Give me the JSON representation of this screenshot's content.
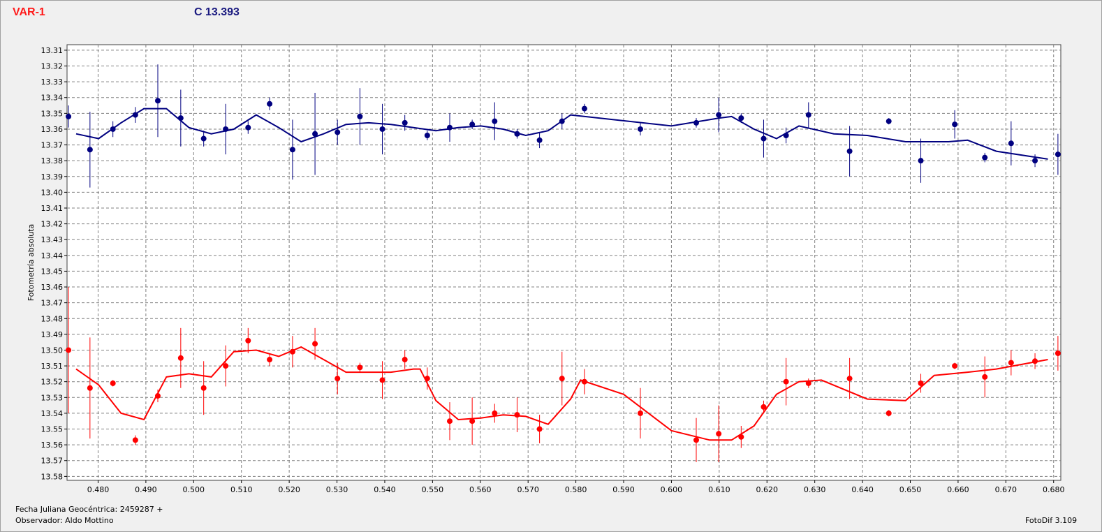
{
  "header": {
    "variable_label": "VAR-1",
    "comparison_label": "C 13.393"
  },
  "footer": {
    "date_label": "Fecha Juliana Geocéntrica: 2459287 +",
    "observer_label": "Observador: Aldo Mottino",
    "software_label": "FotoDif 3.109"
  },
  "colors": {
    "var_series": "#ff0000",
    "comp_series": "#000080",
    "grid": "#808080",
    "plot_background": "#ffffff"
  },
  "chart_data": {
    "type": "scatter",
    "ylabel": "Fotometría absoluta",
    "xlim": [
      0.4735,
      0.6815
    ],
    "ylim": [
      13.31,
      13.58
    ],
    "y_inverted": true,
    "grid": true,
    "x_ticks": [
      "0.480",
      "0.490",
      "0.500",
      "0.510",
      "0.520",
      "0.530",
      "0.540",
      "0.550",
      "0.560",
      "0.570",
      "0.580",
      "0.590",
      "0.600",
      "0.610",
      "0.620",
      "0.630",
      "0.640",
      "0.650",
      "0.660",
      "0.670",
      "0.680"
    ],
    "y_ticks": [
      "13.31",
      "13.32",
      "13.33",
      "13.34",
      "13.35",
      "13.36",
      "13.37",
      "13.38",
      "13.39",
      "13.40",
      "13.41",
      "13.42",
      "13.43",
      "13.44",
      "13.45",
      "13.46",
      "13.47",
      "13.48",
      "13.49",
      "13.50",
      "13.51",
      "13.52",
      "13.53",
      "13.54",
      "13.55",
      "13.56",
      "13.57",
      "13.58"
    ],
    "series": [
      {
        "color": "#000080",
        "points": [
          {
            "x": 0.4738,
            "y": 13.352,
            "err": 0.007
          },
          {
            "x": 0.4783,
            "y": 13.373,
            "err": 0.024
          },
          {
            "x": 0.4831,
            "y": 13.36,
            "err": 0.005
          },
          {
            "x": 0.4878,
            "y": 13.351,
            "err": 0.005
          },
          {
            "x": 0.4925,
            "y": 13.342,
            "err": 0.023
          },
          {
            "x": 0.4973,
            "y": 13.353,
            "err": 0.018
          },
          {
            "x": 0.5021,
            "y": 13.366,
            "err": 0.005
          },
          {
            "x": 0.5067,
            "y": 13.36,
            "err": 0.016
          },
          {
            "x": 0.5114,
            "y": 13.359,
            "err": 0.004
          },
          {
            "x": 0.5159,
            "y": 13.344,
            "err": 0.004
          },
          {
            "x": 0.5207,
            "y": 13.373,
            "err": 0.019
          },
          {
            "x": 0.5254,
            "y": 13.363,
            "err": 0.026
          },
          {
            "x": 0.5301,
            "y": 13.362,
            "err": 0.008
          },
          {
            "x": 0.5348,
            "y": 13.352,
            "err": 0.018
          },
          {
            "x": 0.5395,
            "y": 13.36,
            "err": 0.016
          },
          {
            "x": 0.5442,
            "y": 13.356,
            "err": 0.005
          },
          {
            "x": 0.5489,
            "y": 13.364,
            "err": 0.003
          },
          {
            "x": 0.5536,
            "y": 13.359,
            "err": 0.009
          },
          {
            "x": 0.5583,
            "y": 13.357,
            "err": 0.003
          },
          {
            "x": 0.563,
            "y": 13.355,
            "err": 0.012
          },
          {
            "x": 0.5677,
            "y": 13.363,
            "err": 0.003
          },
          {
            "x": 0.5724,
            "y": 13.367,
            "err": 0.005
          },
          {
            "x": 0.5771,
            "y": 13.355,
            "err": 0.005
          },
          {
            "x": 0.5818,
            "y": 13.347,
            "err": 0.003
          },
          {
            "x": 0.5935,
            "y": 13.36,
            "err": 0.004
          },
          {
            "x": 0.6052,
            "y": 13.356,
            "err": 0.003
          },
          {
            "x": 0.6099,
            "y": 13.351,
            "err": 0.011
          },
          {
            "x": 0.6146,
            "y": 13.353,
            "err": 0.003
          },
          {
            "x": 0.6193,
            "y": 13.366,
            "err": 0.012
          },
          {
            "x": 0.624,
            "y": 13.364,
            "err": 0.005
          },
          {
            "x": 0.6287,
            "y": 13.351,
            "err": 0.008
          },
          {
            "x": 0.6373,
            "y": 13.374,
            "err": 0.016
          },
          {
            "x": 0.6455,
            "y": 13.355,
            "err": 0.002
          },
          {
            "x": 0.6522,
            "y": 13.38,
            "err": 0.014
          },
          {
            "x": 0.6593,
            "y": 13.357,
            "err": 0.009
          },
          {
            "x": 0.6656,
            "y": 13.378,
            "err": 0.003
          },
          {
            "x": 0.6711,
            "y": 13.369,
            "err": 0.014
          },
          {
            "x": 0.6761,
            "y": 13.38,
            "err": 0.004
          },
          {
            "x": 0.6809,
            "y": 13.376,
            "err": 0.013
          }
        ],
        "trend": [
          [
            0.4754,
            13.363
          ],
          [
            0.4801,
            13.366
          ],
          [
            0.4848,
            13.356
          ],
          [
            0.4896,
            13.347
          ],
          [
            0.4943,
            13.347
          ],
          [
            0.499,
            13.359
          ],
          [
            0.5037,
            13.363
          ],
          [
            0.5084,
            13.36
          ],
          [
            0.5131,
            13.351
          ],
          [
            0.5178,
            13.359
          ],
          [
            0.5225,
            13.368
          ],
          [
            0.5272,
            13.363
          ],
          [
            0.5319,
            13.357
          ],
          [
            0.5366,
            13.356
          ],
          [
            0.5413,
            13.357
          ],
          [
            0.546,
            13.359
          ],
          [
            0.5507,
            13.361
          ],
          [
            0.5554,
            13.359
          ],
          [
            0.5601,
            13.358
          ],
          [
            0.5648,
            13.36
          ],
          [
            0.5695,
            13.364
          ],
          [
            0.5742,
            13.361
          ],
          [
            0.5789,
            13.351
          ],
          [
            0.6,
            13.358
          ],
          [
            0.61,
            13.353
          ],
          [
            0.6126,
            13.352
          ],
          [
            0.6173,
            13.36
          ],
          [
            0.622,
            13.366
          ],
          [
            0.6267,
            13.358
          ],
          [
            0.634,
            13.363
          ],
          [
            0.641,
            13.364
          ],
          [
            0.649,
            13.368
          ],
          [
            0.658,
            13.368
          ],
          [
            0.662,
            13.367
          ],
          [
            0.668,
            13.374
          ],
          [
            0.6788,
            13.379
          ]
        ]
      },
      {
        "color": "#ff0000",
        "points": [
          {
            "x": 0.4738,
            "y": 13.5,
            "err": 0.04
          },
          {
            "x": 0.4783,
            "y": 13.524,
            "err": 0.032
          },
          {
            "x": 0.4831,
            "y": 13.521,
            "err": 0.002
          },
          {
            "x": 0.4878,
            "y": 13.557,
            "err": 0.003
          },
          {
            "x": 0.4925,
            "y": 13.529,
            "err": 0.004
          },
          {
            "x": 0.4973,
            "y": 13.505,
            "err": 0.019
          },
          {
            "x": 0.5021,
            "y": 13.524,
            "err": 0.017
          },
          {
            "x": 0.5067,
            "y": 13.51,
            "err": 0.013
          },
          {
            "x": 0.5114,
            "y": 13.494,
            "err": 0.008
          },
          {
            "x": 0.5159,
            "y": 13.506,
            "err": 0.004
          },
          {
            "x": 0.5207,
            "y": 13.501,
            "err": 0.01
          },
          {
            "x": 0.5254,
            "y": 13.496,
            "err": 0.01
          },
          {
            "x": 0.5301,
            "y": 13.518,
            "err": 0.01
          },
          {
            "x": 0.5348,
            "y": 13.511,
            "err": 0.003
          },
          {
            "x": 0.5395,
            "y": 13.519,
            "err": 0.012
          },
          {
            "x": 0.5442,
            "y": 13.506,
            "err": 0.006
          },
          {
            "x": 0.5489,
            "y": 13.518,
            "err": 0.007
          },
          {
            "x": 0.5536,
            "y": 13.545,
            "err": 0.012
          },
          {
            "x": 0.5583,
            "y": 13.545,
            "err": 0.015
          },
          {
            "x": 0.563,
            "y": 13.54,
            "err": 0.006
          },
          {
            "x": 0.5677,
            "y": 13.541,
            "err": 0.011
          },
          {
            "x": 0.5724,
            "y": 13.55,
            "err": 0.009
          },
          {
            "x": 0.5771,
            "y": 13.518,
            "err": 0.017
          },
          {
            "x": 0.5818,
            "y": 13.52,
            "err": 0.008
          },
          {
            "x": 0.5935,
            "y": 13.54,
            "err": 0.016
          },
          {
            "x": 0.6052,
            "y": 13.557,
            "err": 0.014
          },
          {
            "x": 0.6099,
            "y": 13.553,
            "err": 0.018
          },
          {
            "x": 0.6146,
            "y": 13.555,
            "err": 0.007
          },
          {
            "x": 0.6193,
            "y": 13.536,
            "err": 0.004
          },
          {
            "x": 0.624,
            "y": 13.52,
            "err": 0.015
          },
          {
            "x": 0.6287,
            "y": 13.521,
            "err": 0.003
          },
          {
            "x": 0.6373,
            "y": 13.518,
            "err": 0.013
          },
          {
            "x": 0.6455,
            "y": 13.54,
            "err": 0.002
          },
          {
            "x": 0.6522,
            "y": 13.521,
            "err": 0.006
          },
          {
            "x": 0.6593,
            "y": 13.51,
            "err": 0.002
          },
          {
            "x": 0.6656,
            "y": 13.517,
            "err": 0.013
          },
          {
            "x": 0.6711,
            "y": 13.508,
            "err": 0.008
          },
          {
            "x": 0.6761,
            "y": 13.507,
            "err": 0.005
          },
          {
            "x": 0.6809,
            "y": 13.502,
            "err": 0.011
          }
        ],
        "trend": [
          [
            0.4754,
            13.512
          ],
          [
            0.4801,
            13.522
          ],
          [
            0.4848,
            13.54
          ],
          [
            0.4896,
            13.544
          ],
          [
            0.4943,
            13.517
          ],
          [
            0.499,
            13.515
          ],
          [
            0.5037,
            13.517
          ],
          [
            0.5084,
            13.501
          ],
          [
            0.5131,
            13.5
          ],
          [
            0.5178,
            13.504
          ],
          [
            0.5225,
            13.498
          ],
          [
            0.5272,
            13.506
          ],
          [
            0.5319,
            13.514
          ],
          [
            0.5366,
            13.514
          ],
          [
            0.5413,
            13.514
          ],
          [
            0.546,
            13.512
          ],
          [
            0.5474,
            13.512
          ],
          [
            0.5507,
            13.532
          ],
          [
            0.5554,
            13.544
          ],
          [
            0.5601,
            13.543
          ],
          [
            0.5648,
            13.541
          ],
          [
            0.5695,
            13.542
          ],
          [
            0.5742,
            13.547
          ],
          [
            0.5789,
            13.531
          ],
          [
            0.581,
            13.519
          ],
          [
            0.59,
            13.528
          ],
          [
            0.6,
            13.551
          ],
          [
            0.608,
            13.557
          ],
          [
            0.6126,
            13.557
          ],
          [
            0.6173,
            13.548
          ],
          [
            0.622,
            13.528
          ],
          [
            0.6267,
            13.52
          ],
          [
            0.6314,
            13.519
          ],
          [
            0.641,
            13.531
          ],
          [
            0.649,
            13.532
          ],
          [
            0.655,
            13.516
          ],
          [
            0.662,
            13.514
          ],
          [
            0.668,
            13.512
          ],
          [
            0.6788,
            13.506
          ]
        ]
      }
    ]
  }
}
